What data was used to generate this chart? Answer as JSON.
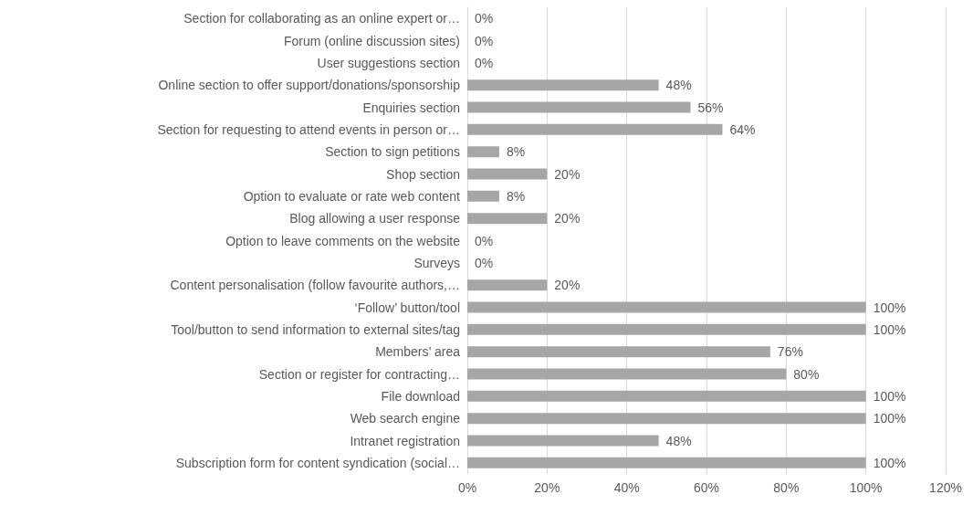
{
  "chart_data": {
    "type": "bar",
    "orientation": "horizontal",
    "categories": [
      "Section for collaborating as an online expert or…",
      "Forum (online discussion sites)",
      "User suggestions section",
      "Online section to offer support/donations/sponsorship",
      "Enquiries section",
      "Section for requesting to attend events in person or…",
      "Section to sign petitions",
      "Shop section",
      "Option to evaluate or rate web content",
      "Blog allowing a user response",
      "Option to leave comments on the website",
      "Surveys",
      "Content personalisation (follow favourite authors,…",
      "‘Follow’ button/tool",
      "Tool/button to send information to external sites/tag",
      "Members’ area",
      "Section or register for contracting…",
      "File download",
      "Web search engine",
      "Intranet registration",
      "Subscription form for content syndication (social…"
    ],
    "values": [
      0,
      0,
      0,
      48,
      56,
      64,
      8,
      20,
      8,
      20,
      0,
      0,
      20,
      100,
      100,
      76,
      80,
      100,
      100,
      48,
      100
    ],
    "value_labels": [
      "0%",
      "0%",
      "0%",
      "48%",
      "56%",
      "64%",
      "8%",
      "20%",
      "8%",
      "20%",
      "0%",
      "0%",
      "20%",
      "100%",
      "100%",
      "76%",
      "80%",
      "100%",
      "100%",
      "48%",
      "100%"
    ],
    "color": "#a6a6a6",
    "xlim": [
      0,
      120
    ],
    "xticks": [
      {
        "value": 0,
        "label": "0%"
      },
      {
        "value": 20,
        "label": "20%"
      },
      {
        "value": 40,
        "label": "40%"
      },
      {
        "value": 60,
        "label": "60%"
      },
      {
        "value": 80,
        "label": "80%"
      },
      {
        "value": 100,
        "label": "100%"
      },
      {
        "value": 120,
        "label": "120%"
      }
    ],
    "grid": "x"
  }
}
